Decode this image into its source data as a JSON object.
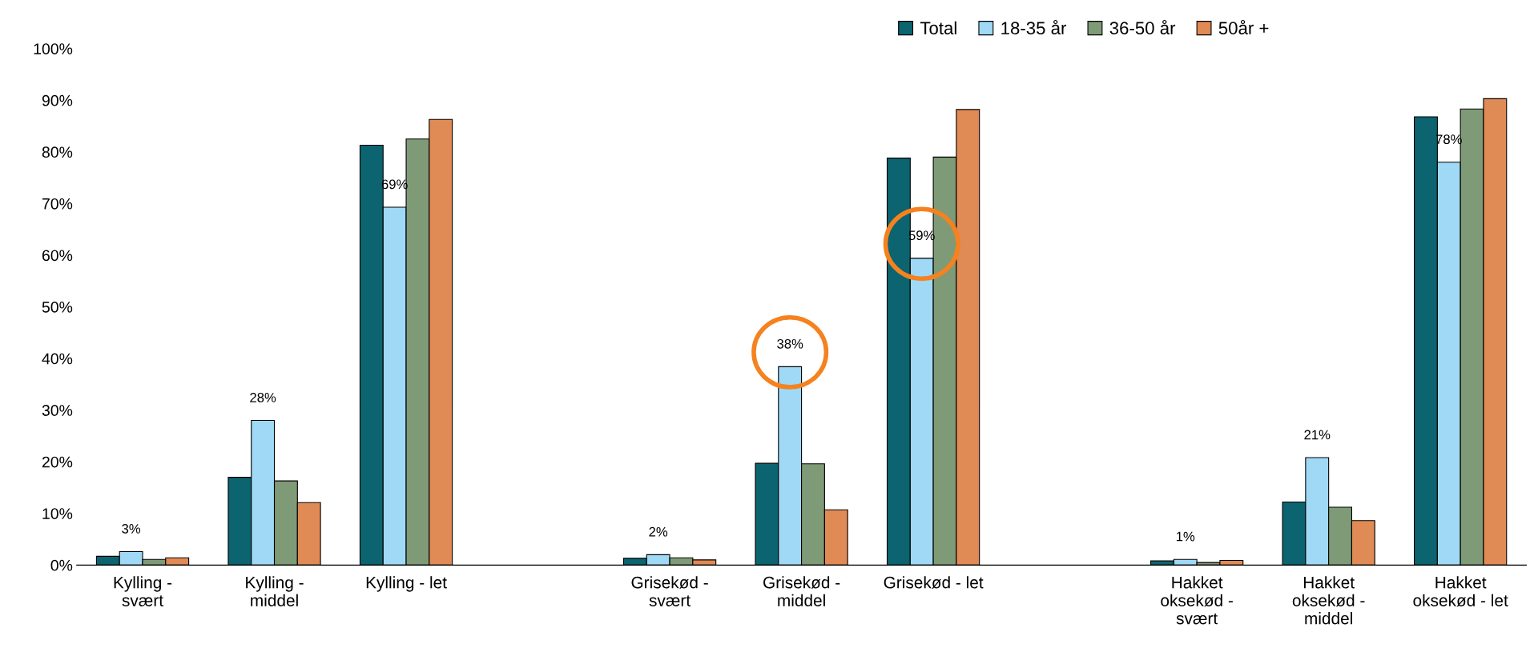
{
  "chart_data": {
    "type": "bar",
    "categories": [
      "Kylling -\nsvært",
      "Kylling -\nmiddel",
      "Kylling - let",
      null,
      "Grisekød -\nsvært",
      "Grisekød -\nmiddel",
      "Grisekød - let",
      null,
      "Hakket\noksekød -\nsvært",
      "Hakket\noksekød -\nmiddel",
      "Hakket\noksekød - let"
    ],
    "series": [
      {
        "name": "Total",
        "color": "#0b6470",
        "values": [
          1.7,
          17.0,
          81.3,
          null,
          1.3,
          19.7,
          78.8,
          null,
          0.8,
          12.2,
          86.8
        ]
      },
      {
        "name": "18-35 år",
        "color": "#9fd9f5",
        "values": [
          2.6,
          28.0,
          69.3,
          null,
          2.0,
          38.4,
          59.4,
          null,
          1.1,
          20.8,
          78.0
        ],
        "value_labels": [
          "3%",
          "28%",
          "69%",
          null,
          "2%",
          "38%",
          "59%",
          null,
          "1%",
          "21%",
          "78%"
        ]
      },
      {
        "name": "36-50 år",
        "color": "#7f9a77",
        "values": [
          1.1,
          16.3,
          82.5,
          null,
          1.4,
          19.6,
          79.0,
          null,
          0.5,
          11.2,
          88.3
        ]
      },
      {
        "name": "50år +",
        "color": "#e08a55",
        "values": [
          1.4,
          12.1,
          86.3,
          null,
          1.0,
          10.7,
          88.2,
          null,
          0.9,
          8.6,
          90.3
        ]
      }
    ],
    "ylim": [
      0,
      100
    ],
    "yticks": [
      {
        "value": 0,
        "label": "0%"
      },
      {
        "value": 10,
        "label": "10%"
      },
      {
        "value": 20,
        "label": "20%"
      },
      {
        "value": 30,
        "label": "30%"
      },
      {
        "value": 40,
        "label": "40%"
      },
      {
        "value": 50,
        "label": "50%"
      },
      {
        "value": 60,
        "label": "60%"
      },
      {
        "value": 70,
        "label": "70%"
      },
      {
        "value": 80,
        "label": "80%"
      },
      {
        "value": 90,
        "label": "90%"
      },
      {
        "value": 100,
        "label": "100%"
      }
    ],
    "grid": false,
    "legend": "top right"
  }
}
